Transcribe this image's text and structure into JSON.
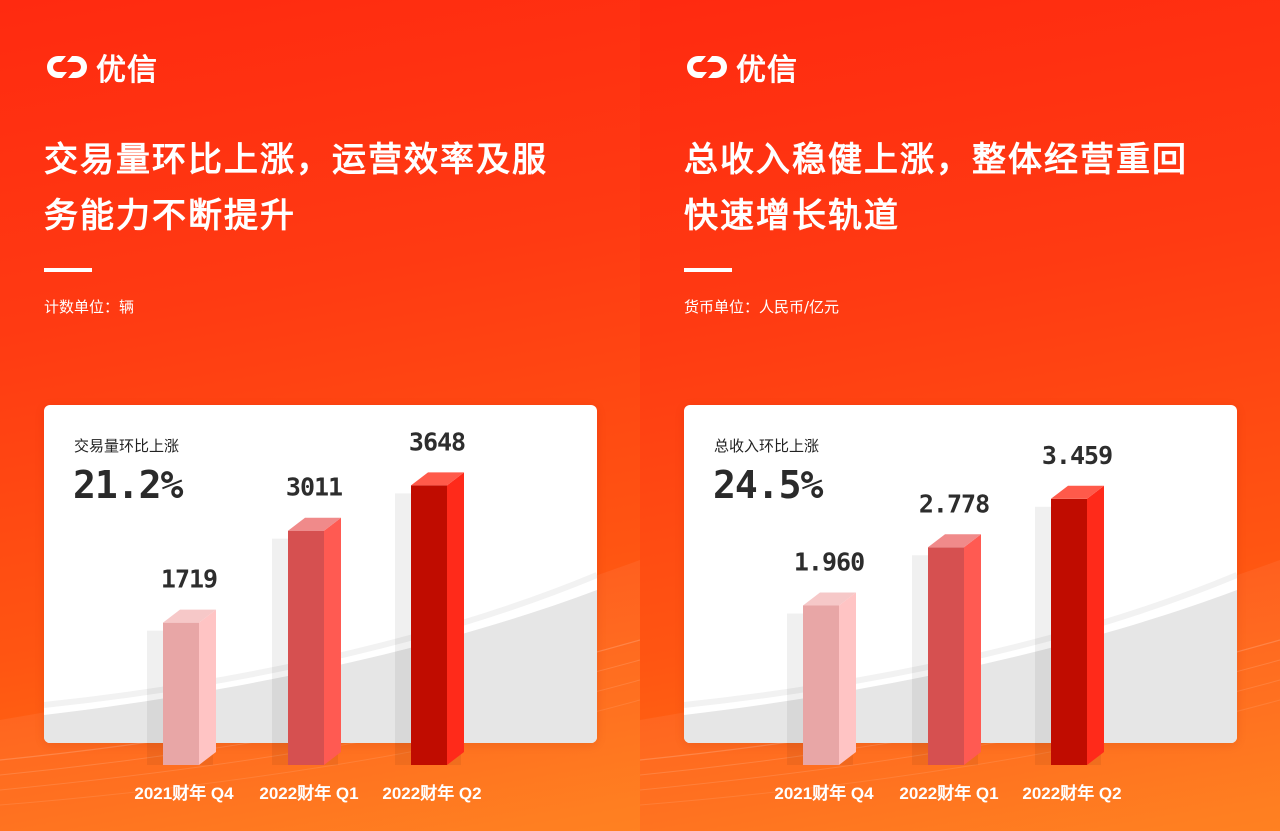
{
  "brand": {
    "name": "优信",
    "logo_icon": "infinity-link-icon"
  },
  "colors": {
    "background_top": "#ff2a10",
    "background_bottom": "#ff7a14",
    "bar_q4": "#e8a6a6",
    "bar_q1": "#d65050",
    "bar_q2": "#c00c00",
    "bar_side": "#ff4a3a",
    "text": "#2d2d2d"
  },
  "panels": [
    {
      "headline_line1": "交易量环比上涨，运营效率及服",
      "headline_line2": "务能力不断提升",
      "unit_label": "计数单位：辆",
      "metric_label": "交易量环比上涨",
      "metric_value": "21.2%",
      "value_labels": [
        "1719",
        "3011",
        "3648"
      ]
    },
    {
      "headline_line1": "总收入稳健上涨，整体经营重回",
      "headline_line2": "快速增长轨道",
      "unit_label": "货币单位：人民币/亿元",
      "metric_label": "总收入环比上涨",
      "metric_value": "24.5%",
      "value_labels": [
        "1.960",
        "2.778",
        "3.459"
      ]
    }
  ],
  "chart_data": [
    {
      "type": "bar",
      "categories": [
        "2021财年 Q4",
        "2022财年 Q1",
        "2022财年 Q2"
      ],
      "values": [
        1719,
        3011,
        3648
      ],
      "title": "交易量环比上涨",
      "ylabel": "计数单位：辆",
      "ylim": [
        0,
        4000
      ],
      "grid": false,
      "legend": "none",
      "style": "3d-column"
    },
    {
      "type": "bar",
      "categories": [
        "2021财年 Q4",
        "2022财年 Q1",
        "2022财年 Q2"
      ],
      "values": [
        1.96,
        2.778,
        3.459
      ],
      "title": "总收入环比上涨",
      "ylabel": "货币单位：人民币/亿元",
      "ylim": [
        0,
        4
      ],
      "grid": false,
      "legend": "none",
      "style": "3d-column"
    }
  ]
}
